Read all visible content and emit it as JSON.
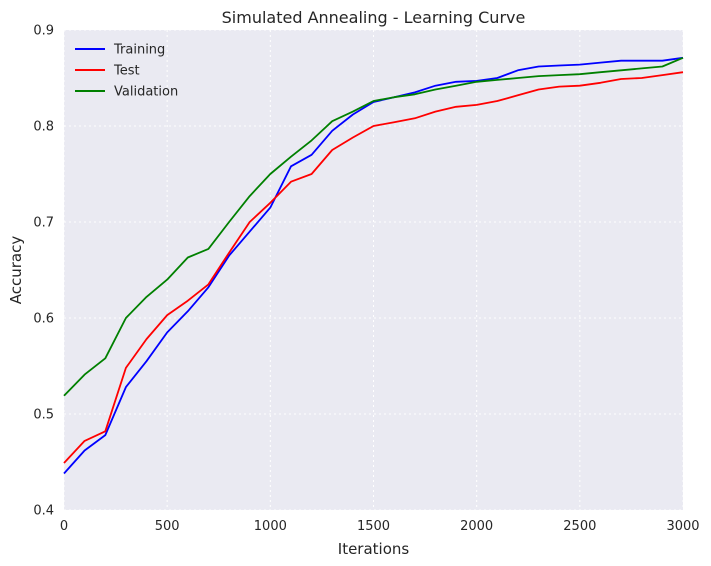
{
  "chart_data": {
    "type": "line",
    "title": "Simulated Annealing - Learning Curve",
    "xlabel": "Iterations",
    "ylabel": "Accuracy",
    "xlim": [
      0,
      3000
    ],
    "ylim": [
      0.4,
      0.9
    ],
    "xticks": [
      0,
      500,
      1000,
      1500,
      2000,
      2500,
      3000
    ],
    "xtick_labels": [
      "0",
      "500",
      "1000",
      "1500",
      "2000",
      "2500",
      "3000"
    ],
    "yticks": [
      0.4,
      0.5,
      0.6,
      0.7,
      0.8,
      0.9
    ],
    "ytick_labels": [
      "0.4",
      "0.5",
      "0.6",
      "0.7",
      "0.8",
      "0.9"
    ],
    "grid": true,
    "legend_position": "top-left",
    "background_color": "#eaeaf2",
    "x": [
      0,
      100,
      200,
      300,
      400,
      500,
      600,
      700,
      800,
      900,
      1000,
      1100,
      1200,
      1300,
      1400,
      1500,
      1600,
      1700,
      1800,
      1900,
      2000,
      2100,
      2200,
      2300,
      2400,
      2500,
      2600,
      2700,
      2800,
      2900,
      3000
    ],
    "series": [
      {
        "name": "Training",
        "color": "#0000ff",
        "values": [
          0.438,
          0.462,
          0.478,
          0.528,
          0.555,
          0.585,
          0.607,
          0.632,
          0.665,
          0.69,
          0.715,
          0.758,
          0.77,
          0.795,
          0.812,
          0.825,
          0.83,
          0.835,
          0.842,
          0.846,
          0.847,
          0.85,
          0.858,
          0.862,
          0.863,
          0.864,
          0.866,
          0.868,
          0.868,
          0.868,
          0.871
        ]
      },
      {
        "name": "Test",
        "color": "#ff0000",
        "values": [
          0.449,
          0.472,
          0.482,
          0.548,
          0.578,
          0.603,
          0.618,
          0.635,
          0.668,
          0.7,
          0.72,
          0.742,
          0.75,
          0.775,
          0.788,
          0.8,
          0.804,
          0.808,
          0.815,
          0.82,
          0.822,
          0.826,
          0.832,
          0.838,
          0.841,
          0.842,
          0.845,
          0.849,
          0.85,
          0.853,
          0.856
        ]
      },
      {
        "name": "Validation",
        "color": "#008000",
        "values": [
          0.519,
          0.541,
          0.558,
          0.6,
          0.622,
          0.64,
          0.663,
          0.672,
          0.7,
          0.727,
          0.75,
          0.768,
          0.785,
          0.805,
          0.815,
          0.826,
          0.83,
          0.833,
          0.838,
          0.842,
          0.846,
          0.848,
          0.85,
          0.852,
          0.853,
          0.854,
          0.856,
          0.858,
          0.86,
          0.862,
          0.871
        ]
      }
    ]
  }
}
